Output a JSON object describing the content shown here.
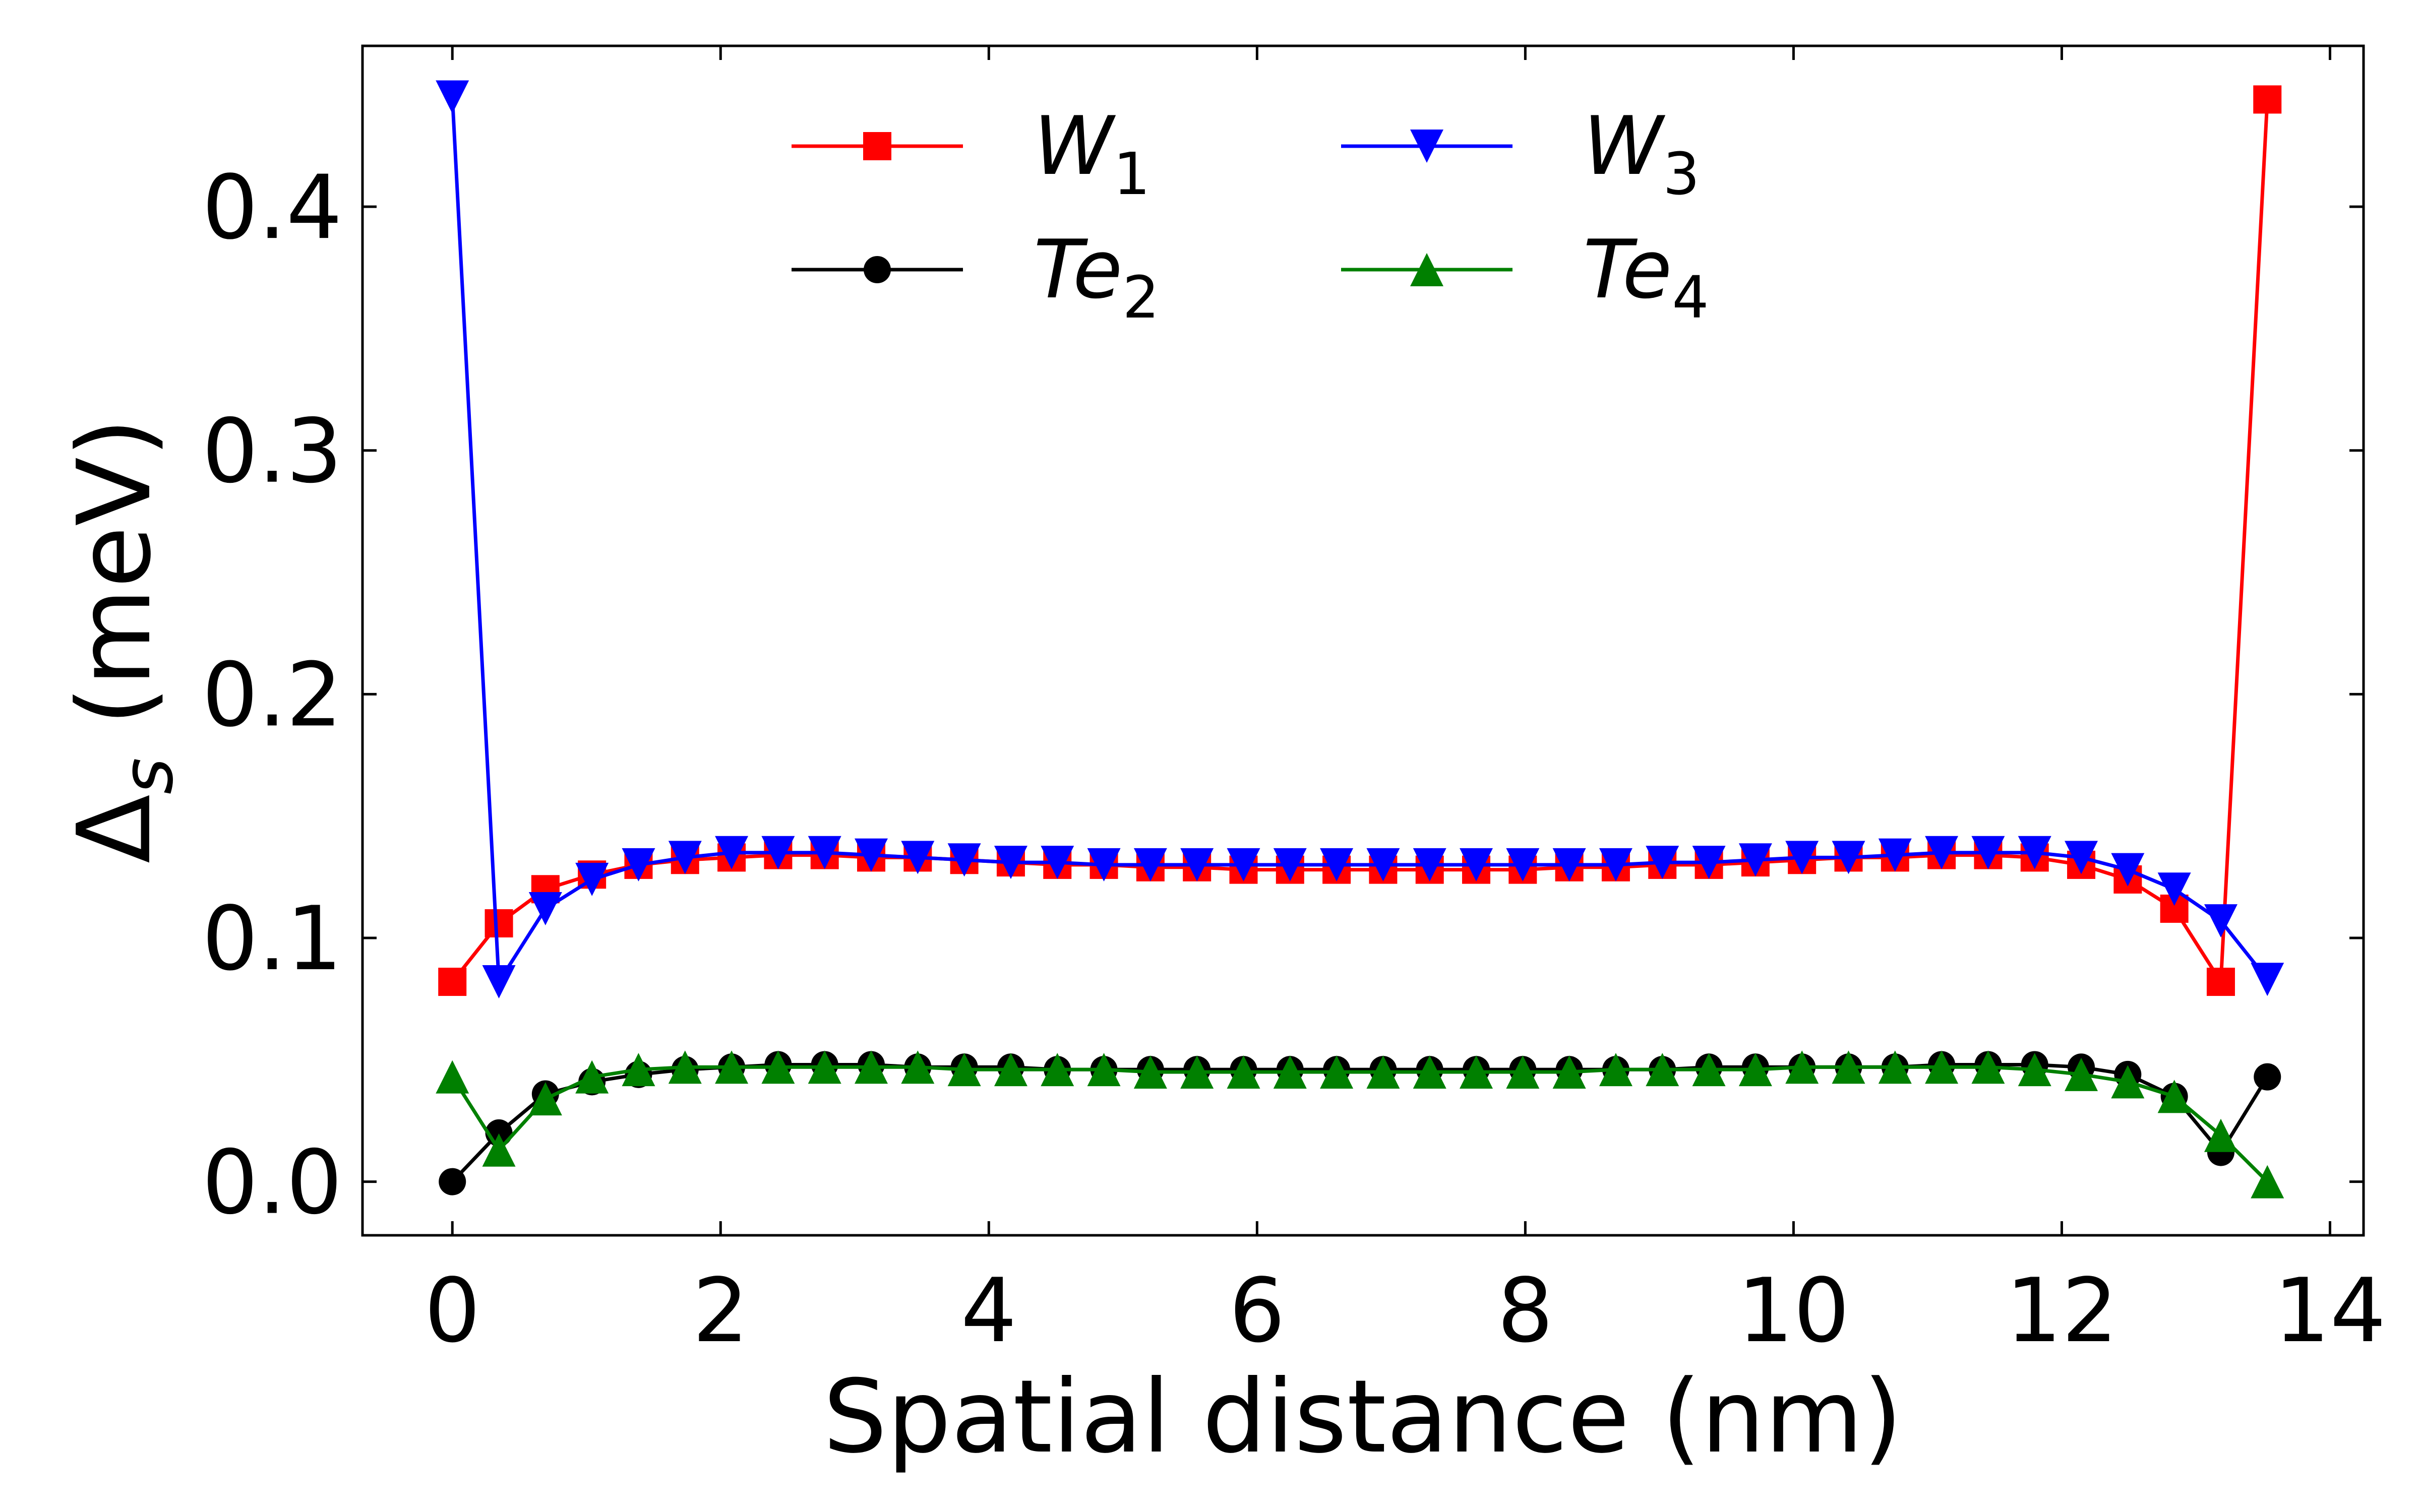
{
  "chart_data": {
    "type": "line",
    "title": "",
    "xlabel": "Spatial distance (nm)",
    "ylabel": {
      "base": "Δ",
      "sub": "s",
      "rest": " (meV)"
    },
    "xlim": [
      -0.67,
      14.25
    ],
    "ylim": [
      -0.022,
      0.466
    ],
    "xticks": [
      0,
      2,
      4,
      6,
      8,
      10,
      12,
      14
    ],
    "xtick_labels": [
      "0",
      "2",
      "4",
      "6",
      "8",
      "10",
      "12",
      "14"
    ],
    "yticks": [
      0.0,
      0.1,
      0.2,
      0.3,
      0.4
    ],
    "ytick_labels": [
      "0.0",
      "0.1",
      "0.2",
      "0.3",
      "0.4"
    ],
    "grid": false,
    "legend_position": "top-center",
    "x": [
      0.0,
      0.347,
      0.694,
      1.041,
      1.388,
      1.735,
      2.082,
      2.429,
      2.776,
      3.123,
      3.47,
      3.817,
      4.164,
      4.511,
      4.858,
      5.205,
      5.552,
      5.899,
      6.246,
      6.593,
      6.94,
      7.287,
      7.634,
      7.981,
      8.328,
      8.675,
      9.022,
      9.369,
      9.716,
      10.063,
      10.41,
      10.757,
      11.104,
      11.451,
      11.798,
      12.145,
      12.492,
      12.839,
      13.186,
      13.533
    ],
    "series": [
      {
        "name": "W",
        "sub": "1",
        "color": "#ff0000",
        "marker": "square",
        "values": [
          0.082,
          0.106,
          0.12,
          0.126,
          0.13,
          0.132,
          0.133,
          0.134,
          0.134,
          0.133,
          0.133,
          0.132,
          0.131,
          0.13,
          0.13,
          0.129,
          0.129,
          0.128,
          0.128,
          0.128,
          0.128,
          0.128,
          0.128,
          0.128,
          0.129,
          0.129,
          0.13,
          0.13,
          0.131,
          0.132,
          0.133,
          0.133,
          0.134,
          0.134,
          0.133,
          0.13,
          0.124,
          0.112,
          0.082,
          0.444
        ]
      },
      {
        "name": "Te",
        "sub": "2",
        "color": "#000000",
        "marker": "circle",
        "values": [
          0.0,
          0.02,
          0.036,
          0.041,
          0.044,
          0.046,
          0.047,
          0.048,
          0.048,
          0.048,
          0.047,
          0.047,
          0.047,
          0.046,
          0.046,
          0.046,
          0.046,
          0.046,
          0.046,
          0.046,
          0.046,
          0.046,
          0.046,
          0.046,
          0.046,
          0.046,
          0.046,
          0.047,
          0.047,
          0.047,
          0.047,
          0.047,
          0.048,
          0.048,
          0.048,
          0.047,
          0.044,
          0.035,
          0.012,
          0.043
        ]
      },
      {
        "name": "W",
        "sub": "3",
        "color": "#0000ff",
        "marker": "triangle-down",
        "values": [
          0.445,
          0.082,
          0.112,
          0.124,
          0.13,
          0.133,
          0.135,
          0.135,
          0.135,
          0.134,
          0.133,
          0.132,
          0.131,
          0.131,
          0.13,
          0.13,
          0.13,
          0.13,
          0.13,
          0.13,
          0.13,
          0.13,
          0.13,
          0.13,
          0.13,
          0.13,
          0.131,
          0.131,
          0.132,
          0.133,
          0.133,
          0.134,
          0.135,
          0.135,
          0.135,
          0.133,
          0.128,
          0.12,
          0.107,
          0.083
        ]
      },
      {
        "name": "Te",
        "sub": "4",
        "color": "#008000",
        "marker": "triangle-up",
        "values": [
          0.043,
          0.013,
          0.034,
          0.043,
          0.046,
          0.047,
          0.047,
          0.047,
          0.047,
          0.047,
          0.047,
          0.046,
          0.046,
          0.046,
          0.046,
          0.045,
          0.045,
          0.045,
          0.045,
          0.045,
          0.045,
          0.045,
          0.045,
          0.045,
          0.045,
          0.046,
          0.046,
          0.046,
          0.046,
          0.047,
          0.047,
          0.047,
          0.047,
          0.047,
          0.046,
          0.044,
          0.041,
          0.035,
          0.019,
          0.0
        ]
      }
    ]
  }
}
